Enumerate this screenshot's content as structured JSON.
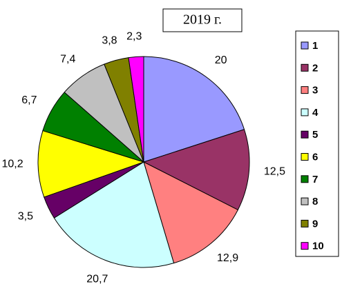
{
  "chart_data": {
    "type": "pie",
    "title": "2019 г.",
    "categories": [
      "1",
      "2",
      "3",
      "4",
      "5",
      "6",
      "7",
      "8",
      "9",
      "10"
    ],
    "values": [
      20,
      12.5,
      12.9,
      20.7,
      3.5,
      10.2,
      6.7,
      7.4,
      3.8,
      2.3
    ],
    "value_labels": [
      "20",
      "12,5",
      "12,9",
      "20,7",
      "3,5",
      "10,2",
      "6,7",
      "7,4",
      "3,8",
      "2,3"
    ],
    "colors": [
      "#9999ff",
      "#993366",
      "#ff8080",
      "#ccffff",
      "#660066",
      "#ffff00",
      "#008000",
      "#c0c0c0",
      "#808000",
      "#ff00ff"
    ],
    "legend": "right"
  }
}
